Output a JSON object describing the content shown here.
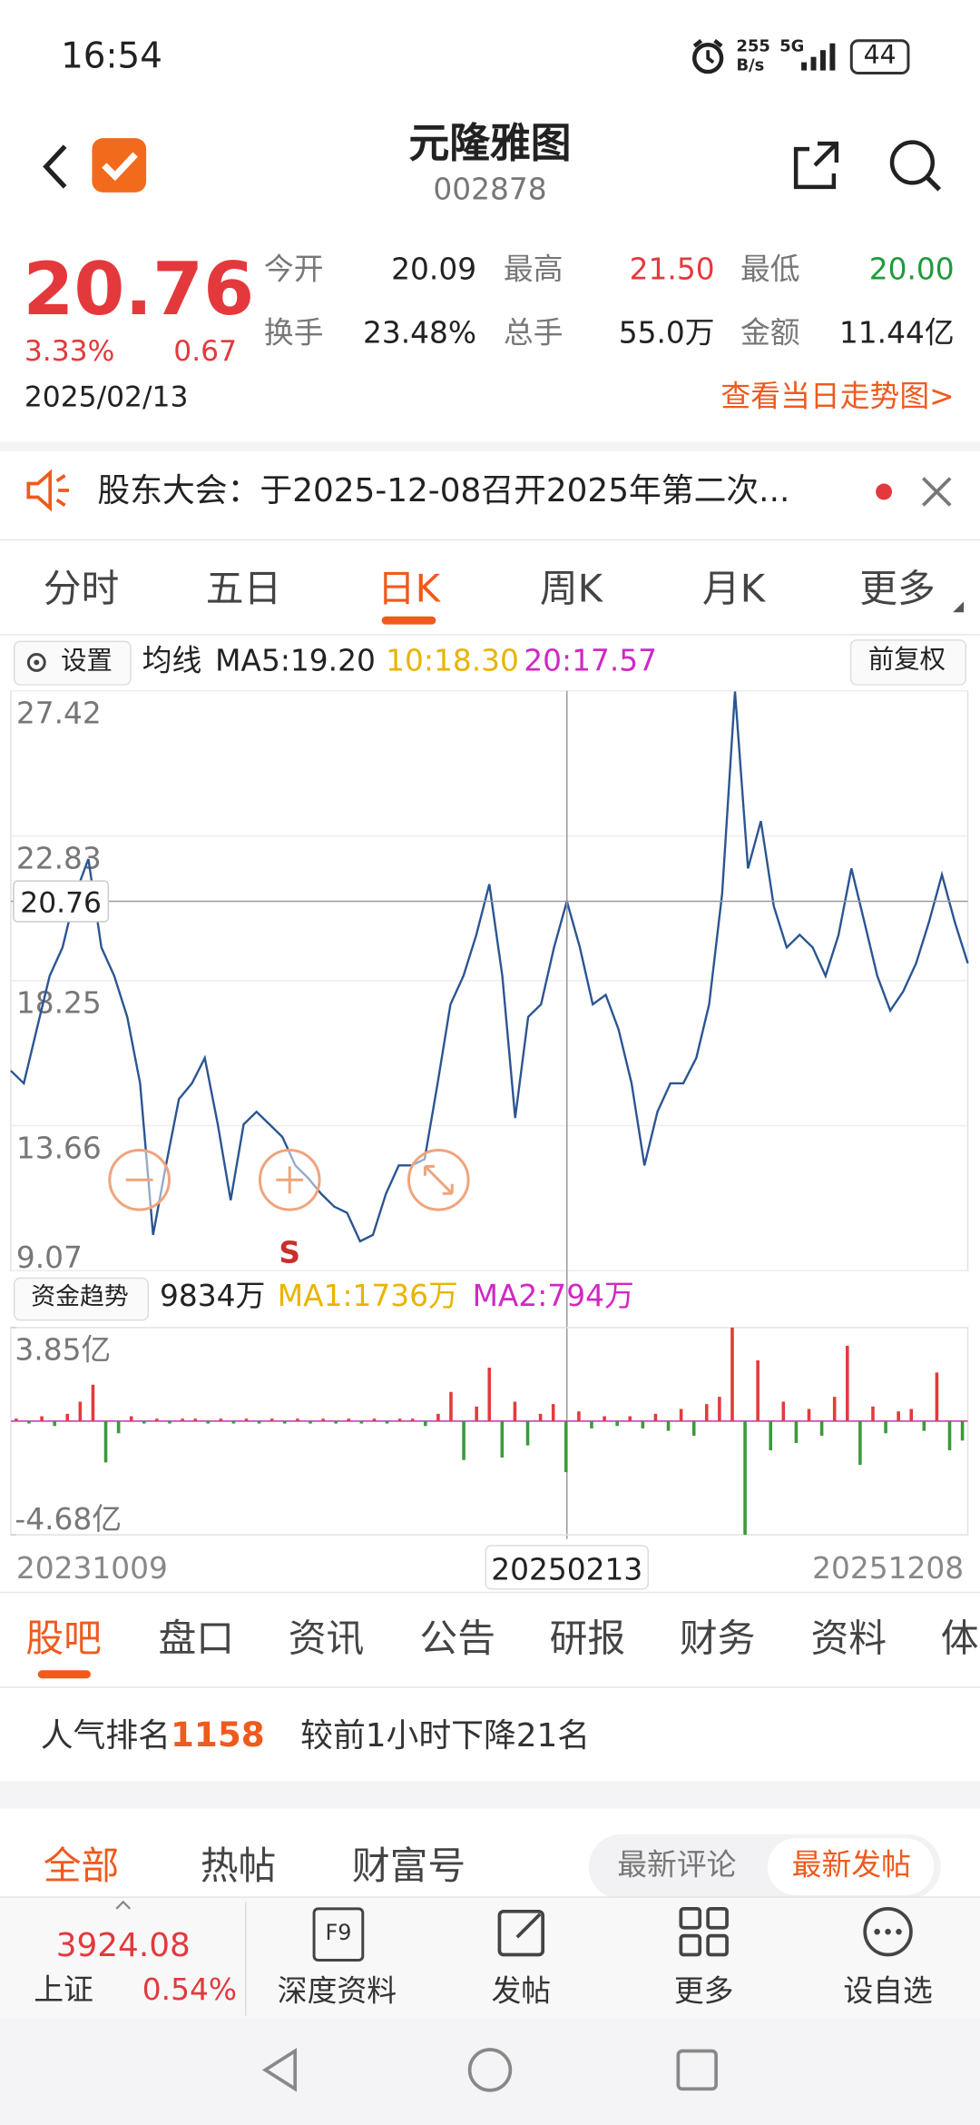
{
  "status_bar": {
    "time": "16:54",
    "speed": "255",
    "speed_unit": "B/s",
    "network": "5G",
    "battery": "44"
  },
  "header": {
    "name": "元隆雅图",
    "code": "002878"
  },
  "quote": {
    "price": "20.76",
    "change_pct": "3.33%",
    "change": "0.67",
    "date": "2025/02/13",
    "fields": [
      {
        "label": "今开",
        "value": "20.09"
      },
      {
        "label": "最高",
        "value": "21.50"
      },
      {
        "label": "最低",
        "value": "20.00"
      },
      {
        "label": "换手",
        "value": "23.48%"
      },
      {
        "label": "总手",
        "value": "55.0万"
      },
      {
        "label": "金额",
        "value": "11.44亿"
      }
    ],
    "trend_link": "查看当日走势图>"
  },
  "notice": {
    "text": "股东大会：于2025-12-08召开2025年第二次..."
  },
  "period_tabs": [
    "分时",
    "五日",
    "日K",
    "周K",
    "月K",
    "更多"
  ],
  "kline_bar": {
    "settings": "设置",
    "ma_label": "均线",
    "ma5": "MA5:19.20",
    "ma10": "10:18.30",
    "ma20": "20:17.57",
    "adjust": "前复权"
  },
  "flow_bar": {
    "title": "资金趋势",
    "value": "9834万",
    "ma1": "MA1:1736万",
    "ma2": "MA2:794万"
  },
  "chart_data": [
    {
      "type": "line",
      "series": [
        {
          "color": "#2b5592",
          "values": [
            15.4,
            15.0,
            16.7,
            18.4,
            19.3,
            21.0,
            22.1,
            19.3,
            18.4,
            17.1,
            15.0,
            10.2,
            12.4,
            14.5,
            15.0,
            15.8,
            13.7,
            11.3,
            13.7,
            14.1,
            13.7,
            13.3,
            12.4,
            12.0,
            11.5,
            11.1,
            10.9,
            10.0,
            10.2,
            11.5,
            12.4,
            12.4,
            12.6,
            15.0,
            17.5,
            18.4,
            19.7,
            21.3,
            18.4,
            13.9,
            17.1,
            17.5,
            19.3,
            20.76,
            19.3,
            17.5,
            17.8,
            16.7,
            15.0,
            12.4,
            14.1,
            15.0,
            15.0,
            15.8,
            17.5,
            21.0,
            27.4,
            21.8,
            23.3,
            20.6,
            19.3,
            19.7,
            19.3,
            18.4,
            19.7,
            21.8,
            20.1,
            18.4,
            17.3,
            17.9,
            18.8,
            20.1,
            21.6,
            20.1,
            18.8
          ]
        }
      ],
      "ylim": [
        9.07,
        27.42
      ],
      "yticks": [
        27.42,
        22.83,
        18.25,
        13.66,
        9.07
      ],
      "reference_line": 20.76,
      "marker_text": "S",
      "grid": true,
      "date_labels": [
        "20231009",
        "20250213",
        "20251208"
      ]
    },
    {
      "type": "bar",
      "values": [
        0.1,
        -0.1,
        0.2,
        -0.2,
        0.3,
        0.8,
        1.5,
        -1.7,
        -0.5,
        0.2,
        -0.1,
        0.1,
        -0.1,
        0.1,
        0.1,
        -0.1,
        0.1,
        -0.1,
        0.1,
        -0.1,
        0.1,
        -0.1,
        0.1,
        -0.1,
        0.1,
        -0.1,
        0.1,
        -0.1,
        0.1,
        -0.1,
        0.1,
        0.1,
        -0.2,
        0.3,
        1.2,
        -1.6,
        0.6,
        2.2,
        -1.5,
        0.8,
        -1.0,
        0.3,
        0.7,
        -2.1,
        0.4,
        -0.3,
        0.2,
        -0.2,
        0.2,
        -0.3,
        0.3,
        -0.4,
        0.5,
        -0.6,
        0.7,
        1.0,
        3.85,
        -4.68,
        2.5,
        -1.2,
        0.8,
        -0.9,
        0.5,
        -0.6,
        1.0,
        3.1,
        -1.8,
        0.6,
        -0.5,
        0.4,
        0.5,
        -0.4,
        2.0,
        -1.2,
        -0.8
      ],
      "ylim": [
        -4.68,
        3.85
      ],
      "yticks": [
        {
          "value": 3.85,
          "label": "3.85亿"
        },
        {
          "value": -4.68,
          "label": "-4.68亿"
        }
      ],
      "colors": {
        "up": "#e23b3b",
        "down": "#3a9a3a"
      }
    }
  ],
  "forum_tabs": [
    "股吧",
    "盘口",
    "资讯",
    "公告",
    "研报",
    "财务",
    "资料",
    "体"
  ],
  "popularity": {
    "label": "人气排名",
    "rank": "1158",
    "change": "较前1小时下降21名"
  },
  "post_tabs": [
    "全部",
    "热帖",
    "财富号"
  ],
  "sort_tabs": [
    "最新评论",
    "最新发帖"
  ],
  "index": {
    "value": "3924.08",
    "name": "上证",
    "pct": "0.54%"
  },
  "nav": {
    "f9_icon": "F9",
    "items": [
      "深度资料",
      "发帖",
      "更多",
      "设自选"
    ]
  }
}
